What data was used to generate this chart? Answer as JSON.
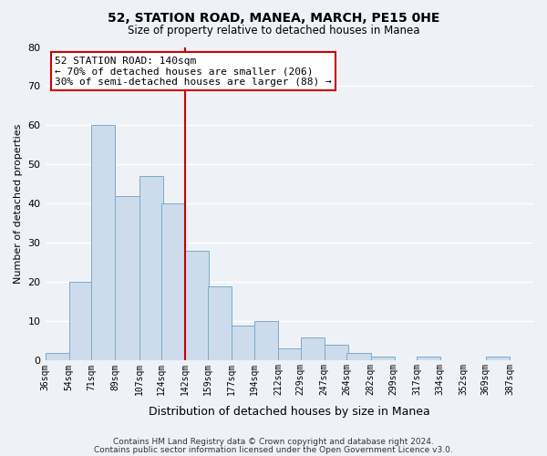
{
  "title": "52, STATION ROAD, MANEA, MARCH, PE15 0HE",
  "subtitle": "Size of property relative to detached houses in Manea",
  "xlabel": "Distribution of detached houses by size in Manea",
  "ylabel": "Number of detached properties",
  "bar_color": "#ccdcec",
  "bar_edge_color": "#7aaac8",
  "bin_labels": [
    "36sqm",
    "54sqm",
    "71sqm",
    "89sqm",
    "107sqm",
    "124sqm",
    "142sqm",
    "159sqm",
    "177sqm",
    "194sqm",
    "212sqm",
    "229sqm",
    "247sqm",
    "264sqm",
    "282sqm",
    "299sqm",
    "317sqm",
    "334sqm",
    "352sqm",
    "369sqm",
    "387sqm"
  ],
  "bin_edges": [
    36,
    54,
    71,
    89,
    107,
    124,
    142,
    159,
    177,
    194,
    212,
    229,
    247,
    264,
    282,
    299,
    317,
    334,
    352,
    369,
    387
  ],
  "counts": [
    2,
    20,
    60,
    42,
    47,
    40,
    28,
    19,
    9,
    10,
    3,
    6,
    4,
    2,
    1,
    0,
    1,
    0,
    0,
    1
  ],
  "property_line_x": 142,
  "annotation_title": "52 STATION ROAD: 140sqm",
  "annotation_line1": "← 70% of detached houses are smaller (206)",
  "annotation_line2": "30% of semi-detached houses are larger (88) →",
  "annotation_box_color": "#ffffff",
  "annotation_box_edge_color": "#cc0000",
  "vline_color": "#cc0000",
  "ylim": [
    0,
    80
  ],
  "yticks": [
    0,
    10,
    20,
    30,
    40,
    50,
    60,
    70,
    80
  ],
  "footer1": "Contains HM Land Registry data © Crown copyright and database right 2024.",
  "footer2": "Contains public sector information licensed under the Open Government Licence v3.0.",
  "background_color": "#eef2f7",
  "grid_color": "#ffffff"
}
